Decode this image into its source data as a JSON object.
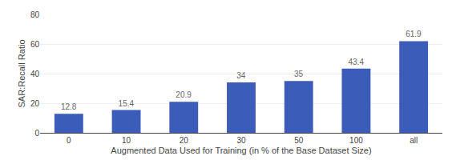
{
  "chart_data": {
    "type": "bar",
    "categories": [
      "0",
      "10",
      "20",
      "30",
      "50",
      "100",
      "all"
    ],
    "values": [
      12.8,
      15.4,
      20.9,
      34,
      35,
      43.4,
      61.9
    ],
    "color": "#3B5CB8",
    "xlabel": "Augmented Data Used for Training (in % of the Base Dataset Size)",
    "ylabel": "SAR:Recall Ratio",
    "ylim": [
      0,
      80
    ],
    "yticks": [
      0,
      20,
      40,
      60,
      80
    ],
    "grid": true,
    "data_labels": true
  }
}
